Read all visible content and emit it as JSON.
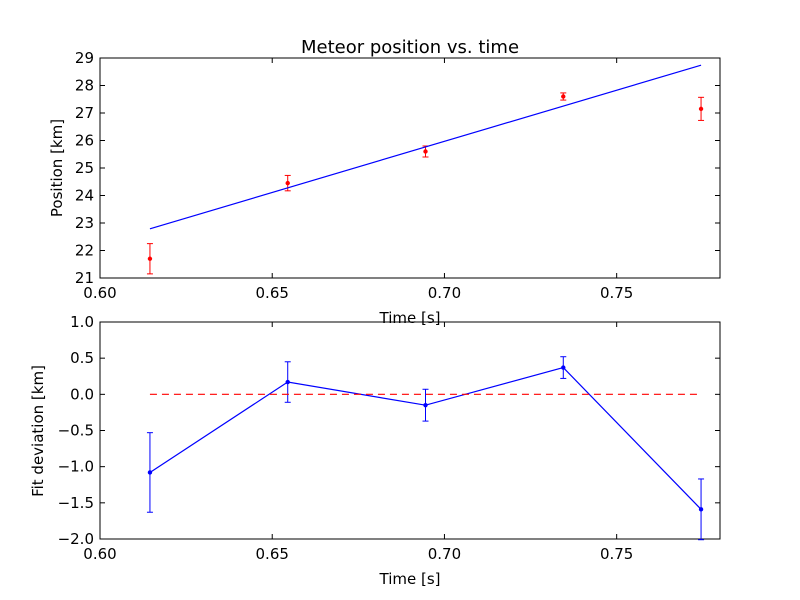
{
  "chart_data": [
    {
      "type": "scatter",
      "title": "Meteor position vs. time",
      "xlabel": "Time [s]",
      "ylabel": "Position [km]",
      "xlim": [
        0.6,
        0.78
      ],
      "ylim": [
        21,
        29
      ],
      "xticks": [
        "0.60",
        "0.65",
        "0.70",
        "0.75"
      ],
      "yticks": [
        "21",
        "22",
        "23",
        "24",
        "25",
        "26",
        "27",
        "28",
        "29"
      ],
      "grid": false,
      "series": [
        {
          "kind": "points_with_error",
          "color": "#ff0000",
          "x": [
            0.6145,
            0.6545,
            0.6945,
            0.7345,
            0.7745
          ],
          "y": [
            21.7,
            24.45,
            25.6,
            27.6,
            27.15
          ],
          "yerr": [
            0.55,
            0.28,
            0.2,
            0.13,
            0.42
          ]
        },
        {
          "kind": "fit_line",
          "color": "#0000ff",
          "x": [
            0.6145,
            0.7745
          ],
          "y": [
            22.79,
            28.74
          ]
        }
      ]
    },
    {
      "type": "line",
      "title": "",
      "xlabel": "Time [s]",
      "ylabel": "Fit deviation [km]",
      "xlim": [
        0.6,
        0.78
      ],
      "ylim": [
        -2.0,
        1.0
      ],
      "xticks": [
        "0.60",
        "0.65",
        "0.70",
        "0.75"
      ],
      "yticks": [
        "1.0",
        "0.5",
        "0.0",
        "−0.5",
        "−1.0",
        "−1.5",
        "−2.0"
      ],
      "grid": false,
      "series": [
        {
          "kind": "line_with_error",
          "color": "#0000ff",
          "x": [
            0.6145,
            0.6545,
            0.6945,
            0.7345,
            0.7745
          ],
          "y": [
            -1.08,
            0.17,
            -0.15,
            0.37,
            -1.59
          ],
          "yerr": [
            0.55,
            0.28,
            0.22,
            0.15,
            0.42
          ]
        },
        {
          "kind": "zero_reference",
          "color": "#ff0000",
          "dashed": true,
          "x": [
            0.6145,
            0.7745
          ],
          "y": [
            0.0,
            0.0
          ]
        }
      ]
    }
  ]
}
